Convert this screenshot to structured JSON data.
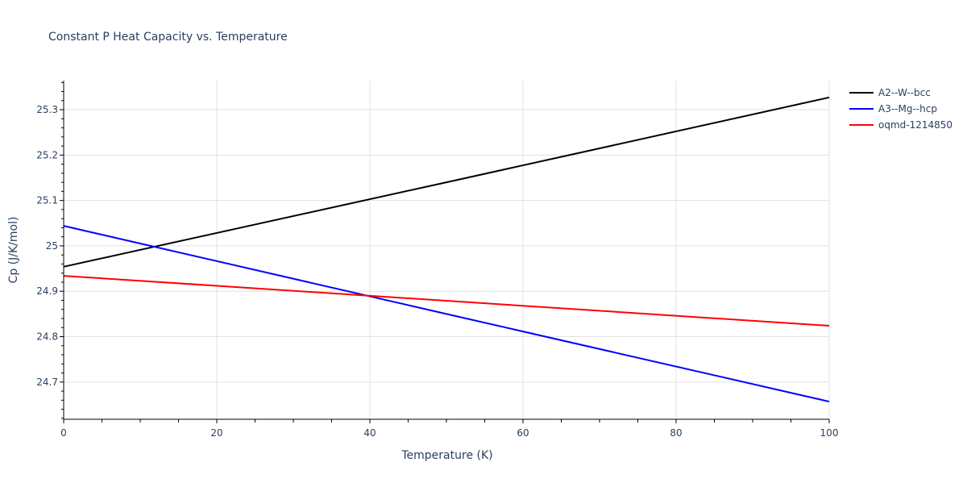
{
  "chart_data": {
    "type": "line",
    "title": "Constant P Heat Capacity vs. Temperature",
    "xlabel": "Temperature (K)",
    "ylabel": "Cp (J/K/mol)",
    "xlim": [
      0,
      100
    ],
    "ylim": [
      24.618,
      25.364
    ],
    "xticks": [
      0,
      20,
      40,
      60,
      80,
      100
    ],
    "yticks": [
      24.7,
      24.8,
      24.9,
      25,
      25.1,
      25.2,
      25.3
    ],
    "ytick_labels": [
      "24.7",
      "24.8",
      "24.9",
      "25",
      "25.1",
      "25.2",
      "25.3"
    ],
    "grid": true,
    "legend_position": "top-right",
    "series": [
      {
        "name": "A2--W--bcc",
        "color": "#000000",
        "x": [
          0,
          50,
          100
        ],
        "y": [
          24.954,
          25.14,
          25.327
        ]
      },
      {
        "name": "A3--Mg--hcp",
        "color": "#0000ff",
        "x": [
          0,
          50,
          100
        ],
        "y": [
          25.044,
          24.85,
          24.657
        ]
      },
      {
        "name": "oqmd-1214850",
        "color": "#ff0000",
        "x": [
          0,
          50,
          100
        ],
        "y": [
          24.934,
          24.879,
          24.824
        ]
      }
    ]
  }
}
